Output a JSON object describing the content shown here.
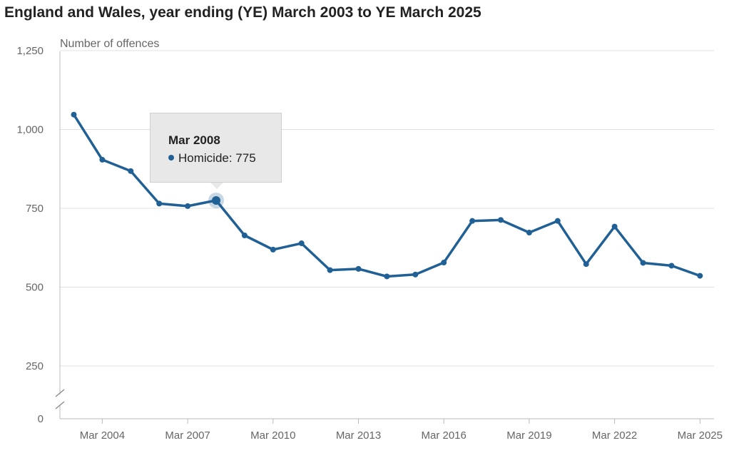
{
  "title": "England and Wales, year ending (YE) March 2003 to YE March 2025",
  "colors": {
    "line": "#206095",
    "grid": "#e0e0e0",
    "axis": "#bbbbbb"
  },
  "tooltip": {
    "title": "Mar 2008",
    "series": "Homicide",
    "value": 775,
    "text": "Homicide: 775"
  },
  "chart_data": {
    "type": "line",
    "title": "England and Wales, year ending (YE) March 2003 to YE March 2025",
    "xlabel": "",
    "ylabel": "Number of offences",
    "ylim": [
      0,
      1250
    ],
    "yticks": [
      0,
      250,
      500,
      750,
      "1,000",
      "1,250"
    ],
    "grid": true,
    "axis_break": true,
    "x": [
      "Mar 2003",
      "Mar 2004",
      "Mar 2005",
      "Mar 2006",
      "Mar 2007",
      "Mar 2008",
      "Mar 2009",
      "Mar 2010",
      "Mar 2011",
      "Mar 2012",
      "Mar 2013",
      "Mar 2014",
      "Mar 2015",
      "Mar 2016",
      "Mar 2017",
      "Mar 2018",
      "Mar 2019",
      "Mar 2020",
      "Mar 2021",
      "Mar 2022",
      "Mar 2023",
      "Mar 2024",
      "Mar 2025"
    ],
    "xtick_labels": [
      "Mar 2004",
      "Mar 2007",
      "Mar 2010",
      "Mar 2013",
      "Mar 2016",
      "Mar 2019",
      "Mar 2022",
      "Mar 2025"
    ],
    "series": [
      {
        "name": "Homicide",
        "values": [
          1047,
          904,
          868,
          765,
          757,
          775,
          664,
          619,
          639,
          554,
          558,
          534,
          540,
          578,
          710,
          713,
          673,
          710,
          573,
          692,
          577,
          568,
          536
        ]
      }
    ],
    "highlight": {
      "x": "Mar 2008",
      "value": 775
    }
  }
}
